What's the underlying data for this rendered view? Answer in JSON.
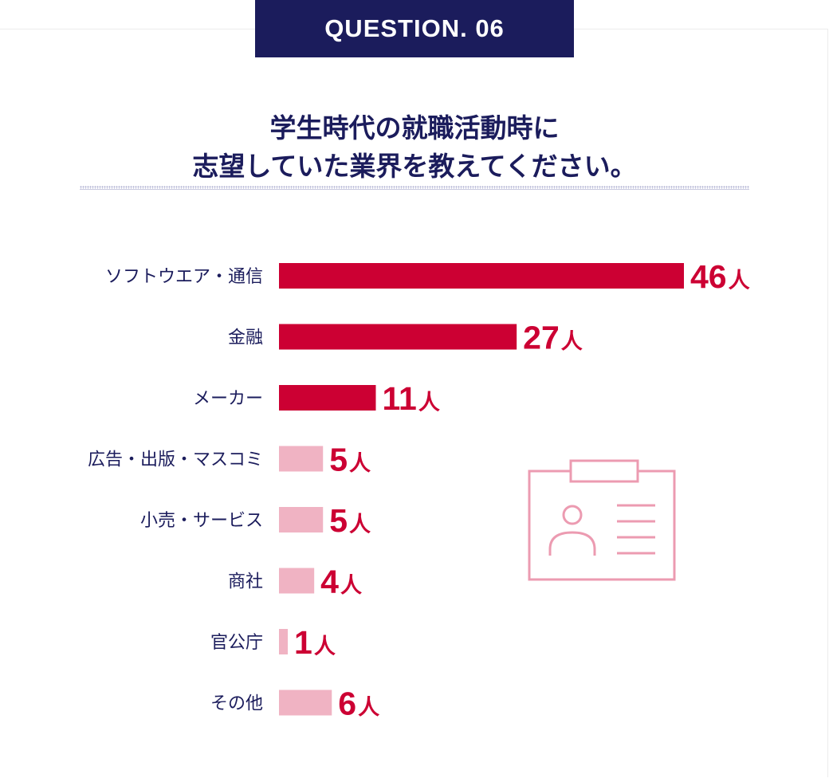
{
  "badge": {
    "label": "QUESTION. 06"
  },
  "question": {
    "line1": "学生時代の就職活動時に",
    "line2": "志望していた業界を教えてください。"
  },
  "icon": "id-badge-icon",
  "colors": {
    "navy": "#1b1c5c",
    "bar_main": "#cc0033",
    "bar_light": "#f0b3c3",
    "value_text": "#cc0033"
  },
  "chart_data": {
    "type": "bar",
    "orientation": "horizontal",
    "unit": "人",
    "categories": [
      "ソフトウエア・通信",
      "金融",
      "メーカー",
      "広告・出版・マスコミ",
      "小売・サービス",
      "商社",
      "官公庁",
      "その他"
    ],
    "values": [
      46,
      27,
      11,
      5,
      5,
      4,
      1,
      6
    ],
    "value_labels": [
      "46",
      "27",
      "11",
      "5",
      "5",
      "4",
      "1",
      "6"
    ],
    "highlighted": [
      true,
      true,
      true,
      false,
      false,
      false,
      false,
      false
    ],
    "xlim": [
      0,
      46
    ],
    "grid": false,
    "legend": "none"
  }
}
